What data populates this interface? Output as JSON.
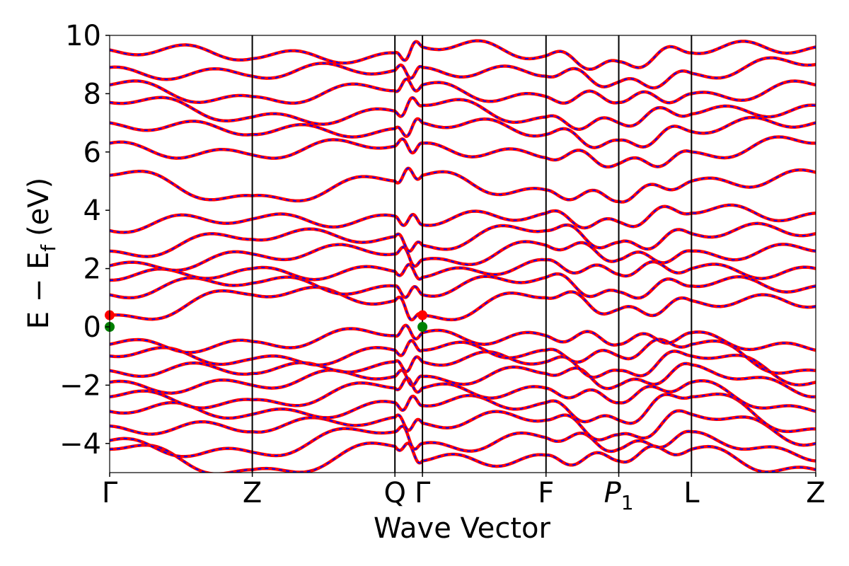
{
  "chart_data": {
    "type": "line",
    "title": "",
    "xlabel": "Wave Vector",
    "ylabel": "E − E_f (eV)",
    "ylabel_main": "E − E",
    "ylabel_sub": "f",
    "ylabel_unit": "(eV)",
    "ylim": [
      -5,
      10
    ],
    "yticks": [
      -4,
      -2,
      0,
      2,
      4,
      6,
      8,
      10
    ],
    "ytick_labels": [
      "−4",
      "−2",
      "0",
      "2",
      "4",
      "6",
      "8",
      "10"
    ],
    "xlim": [
      0,
      1.0
    ],
    "kpoints": [
      {
        "label": "Γ",
        "x": 0.0
      },
      {
        "label": "Z",
        "x": 0.202
      },
      {
        "label": "Q",
        "x": 0.404
      },
      {
        "label": "Γ",
        "x": 0.443
      },
      {
        "label": "F",
        "x": 0.618
      },
      {
        "label": "P",
        "sub": "1",
        "italic": true,
        "x": 0.721
      },
      {
        "label": "L",
        "x": 0.824
      },
      {
        "label": "Z",
        "x": 1.0
      }
    ],
    "grid": false,
    "colors": {
      "band_solid": "#ff0000",
      "band_dashed": "#0000ff",
      "vbm_marker": "#008000",
      "cbm_marker": "#ff0000"
    },
    "series": [
      {
        "values": [
          -4.2,
          -4.9,
          -4.1,
          -4.6,
          -4.4,
          -4.6,
          -4.2,
          -4.9
        ]
      },
      {
        "values": [
          -3.9,
          -4.3,
          -3.6,
          -4.0,
          -3.8,
          -4.2,
          -3.6,
          -4.6
        ]
      },
      {
        "values": [
          -3.4,
          -3.6,
          -3.1,
          -3.3,
          -3.2,
          -3.7,
          -3.0,
          -4.0
        ]
      },
      {
        "values": [
          -2.9,
          -3.0,
          -2.6,
          -2.7,
          -2.6,
          -3.2,
          -2.4,
          -3.5
        ]
      },
      {
        "values": [
          -2.4,
          -2.5,
          -2.1,
          -2.1,
          -2.1,
          -2.6,
          -1.9,
          -2.9
        ]
      },
      {
        "values": [
          -1.9,
          -2.0,
          -1.7,
          -1.7,
          -1.6,
          -2.0,
          -1.3,
          -2.4
        ]
      },
      {
        "values": [
          -1.5,
          -1.6,
          -1.2,
          -1.2,
          -1.2,
          -1.5,
          -1.0,
          -1.9
        ]
      },
      {
        "values": [
          -1.0,
          -1.1,
          -0.8,
          -0.8,
          -0.8,
          -1.0,
          -0.6,
          -1.5
        ]
      },
      {
        "values": [
          -0.6,
          -0.5,
          -0.3,
          -0.2,
          -0.3,
          -0.6,
          -0.2,
          -0.8
        ]
      },
      {
        "values": [
          0.4,
          1.1,
          0.9,
          0.4,
          1.0,
          0.6,
          0.9,
          0.7
        ]
      },
      {
        "values": [
          1.1,
          1.5,
          1.4,
          1.1,
          1.7,
          1.2,
          1.4,
          1.4
        ]
      },
      {
        "values": [
          1.6,
          2.0,
          1.9,
          1.7,
          2.3,
          1.8,
          2.0,
          2.0
        ]
      },
      {
        "values": [
          2.1,
          2.5,
          2.5,
          2.3,
          2.8,
          2.3,
          2.6,
          2.6
        ]
      },
      {
        "values": [
          2.6,
          3.0,
          3.1,
          2.8,
          3.3,
          2.9,
          3.2,
          3.2
        ]
      },
      {
        "values": [
          3.3,
          3.7,
          3.8,
          3.5,
          3.9,
          3.6,
          3.9,
          3.9
        ]
      },
      {
        "values": [
          5.2,
          4.5,
          5.0,
          5.2,
          4.7,
          4.3,
          5.0,
          5.3
        ]
      },
      {
        "values": [
          6.3,
          5.9,
          6.2,
          6.3,
          5.8,
          5.6,
          6.0,
          6.3
        ]
      },
      {
        "values": [
          7.0,
          6.6,
          6.8,
          7.0,
          6.6,
          6.4,
          6.7,
          7.0
        ]
      },
      {
        "values": [
          7.7,
          7.2,
          7.4,
          7.6,
          7.2,
          7.0,
          7.3,
          7.6
        ]
      },
      {
        "values": [
          8.3,
          7.9,
          8.1,
          8.3,
          7.9,
          7.7,
          8.0,
          8.3
        ]
      },
      {
        "values": [
          8.9,
          8.6,
          8.8,
          8.9,
          8.6,
          8.4,
          8.7,
          9.0
        ]
      },
      {
        "values": [
          9.5,
          9.2,
          9.4,
          9.6,
          9.3,
          9.1,
          9.4,
          9.6
        ]
      }
    ],
    "markers": [
      {
        "x": 0.0,
        "y": 0.0,
        "kind": "vbm"
      },
      {
        "x": 0.0,
        "y": 0.4,
        "kind": "cbm"
      },
      {
        "x": 0.443,
        "y": 0.0,
        "kind": "vbm"
      },
      {
        "x": 0.443,
        "y": 0.4,
        "kind": "cbm"
      }
    ]
  }
}
